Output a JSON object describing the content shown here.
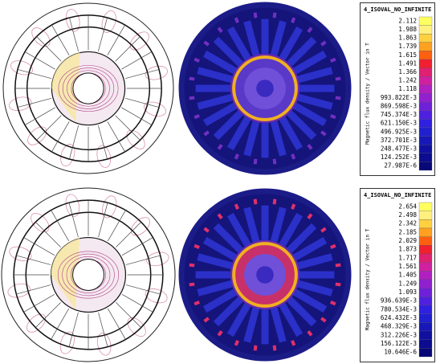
{
  "legends": [
    {
      "title": "4_ISOVAL_NO_INFINITE",
      "label": "Magnetic flux density / Vector in T",
      "values": [
        "2.112",
        "1.988",
        "1.863",
        "1.739",
        "1.615",
        "1.491",
        "1.366",
        "1.242",
        "1.118",
        "993.822E-3",
        "869.598E-3",
        "745.374E-3",
        "621.150E-3",
        "496.925E-3",
        "372.701E-3",
        "248.477E-3",
        "124.252E-3",
        "27.987E-6"
      ]
    },
    {
      "title": "4_ISOVAL_NO_INFINITE",
      "label": "Magnetic flux density / Vector in T",
      "values": [
        "2.654",
        "2.498",
        "2.342",
        "2.185",
        "2.029",
        "1.873",
        "1.717",
        "1.561",
        "1.405",
        "1.249",
        "1.093",
        "936.639E-3",
        "780.534E-3",
        "624.432E-3",
        "468.329E-3",
        "312.226E-3",
        "156.122E-3",
        "10.646E-6"
      ]
    }
  ]
}
